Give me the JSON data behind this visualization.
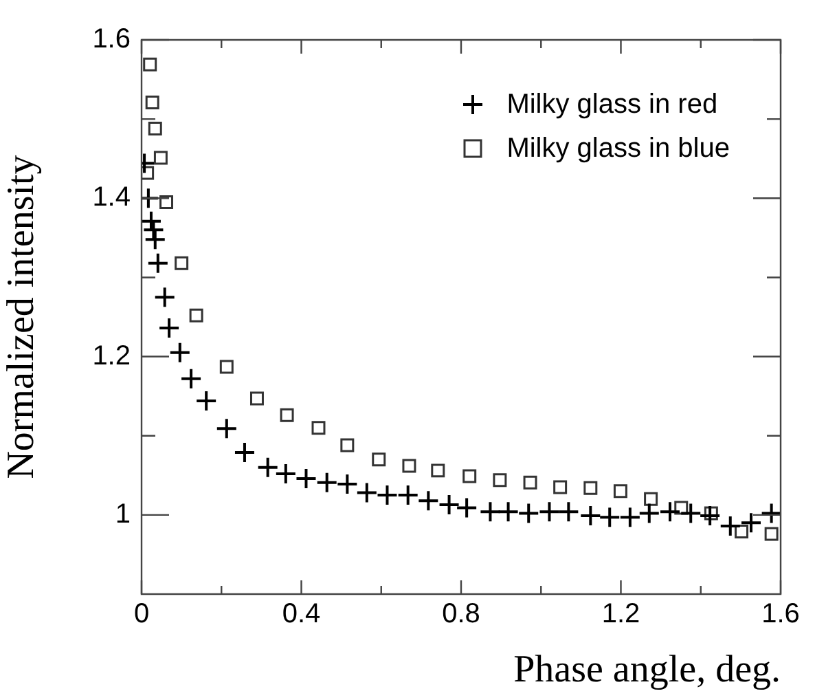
{
  "chart_data": {
    "type": "scatter",
    "xlabel": "Phase angle, deg.",
    "ylabel": "Normalized intensity",
    "legend": "top right",
    "grid": false,
    "xlim": [
      0,
      1.6
    ],
    "ylim": [
      0.9,
      1.6
    ],
    "xticks": [
      0,
      {
        "value": 0.2,
        "label": null
      },
      0.4,
      {
        "value": 0.6,
        "label": null
      },
      0.8,
      {
        "value": 1.0,
        "label": null
      },
      1.2,
      {
        "value": 1.4,
        "label": null
      },
      1.6
    ],
    "yticks": [
      {
        "value": 1,
        "label": "1"
      },
      {
        "value": 1.1,
        "label": null
      },
      1.2,
      {
        "value": 1.3,
        "label": null
      },
      1.4,
      {
        "value": 1.5,
        "label": null
      },
      1.6
    ],
    "series": [
      {
        "name": "Milky glass in red",
        "color": "#000000",
        "marker": "cross",
        "x": [
          0.007,
          0.017,
          0.024,
          0.03,
          0.034,
          0.041,
          0.058,
          0.069,
          0.096,
          0.124,
          0.162,
          0.213,
          0.258,
          0.316,
          0.361,
          0.412,
          0.464,
          0.515,
          0.564,
          0.615,
          0.667,
          0.718,
          0.77,
          0.814,
          0.873,
          0.918,
          0.969,
          1.021,
          1.069,
          1.124,
          1.172,
          1.223,
          1.271,
          1.323,
          1.375,
          1.423,
          1.474,
          1.526,
          1.577
        ],
        "values": [
          1.444,
          1.4,
          1.371,
          1.36,
          1.348,
          1.318,
          1.275,
          1.236,
          1.205,
          1.172,
          1.144,
          1.109,
          1.079,
          1.06,
          1.052,
          1.046,
          1.041,
          1.039,
          1.028,
          1.025,
          1.025,
          1.018,
          1.013,
          1.009,
          1.004,
          1.004,
          1.002,
          1.004,
          1.004,
          0.999,
          0.997,
          0.997,
          1.002,
          1.004,
          1.002,
          0.999,
          0.986,
          0.99,
          1.002
        ]
      },
      {
        "name": "Milky glass in blue",
        "color": "#333333",
        "marker": "square",
        "x": [
          0.014,
          0.021,
          0.027,
          0.034,
          0.048,
          0.062,
          0.1,
          0.137,
          0.213,
          0.289,
          0.364,
          0.443,
          0.515,
          0.594,
          0.67,
          0.742,
          0.821,
          0.897,
          0.973,
          1.048,
          1.124,
          1.199,
          1.275,
          1.351,
          1.426,
          1.502,
          1.577
        ],
        "values": [
          1.432,
          1.569,
          1.521,
          1.488,
          1.451,
          1.395,
          1.318,
          1.252,
          1.187,
          1.147,
          1.126,
          1.11,
          1.088,
          1.07,
          1.062,
          1.056,
          1.049,
          1.044,
          1.041,
          1.035,
          1.034,
          1.03,
          1.02,
          1.009,
          1.002,
          0.979,
          0.976
        ]
      }
    ]
  }
}
